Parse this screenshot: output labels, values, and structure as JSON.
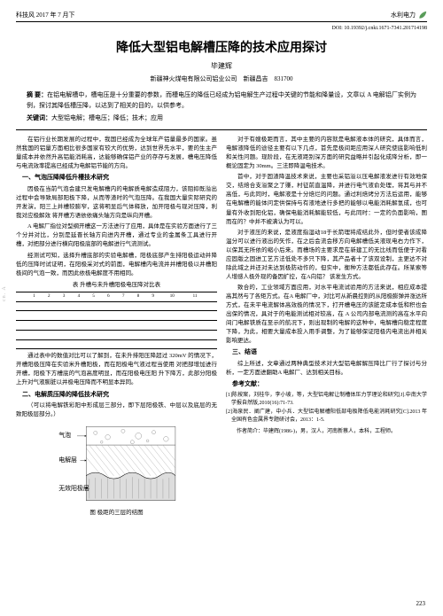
{
  "header": {
    "left": "科技风 2017 年 7 月下",
    "right": "水利电力"
  },
  "doi": "DOI: 10.19392/j.cnki.1671-7341.201714198",
  "title": "降低大型铝电解槽压降的技术应用探讨",
  "author": "毕建辉",
  "affiliation": "新疆神火煤电有限公司铝业公司　新疆昌吉　831700",
  "abstractLabel": "摘 要：",
  "abstractText": "在铝电解槽中，槽电压是十分重要的参数，而槽电压的降低已经成为铝电解生产过程中关键的节能和降量设，文章以 A 电解铝厂实例为例，探讨其降低槽压降，以达到了相关的目的，以供参考。",
  "keywordsLabel": "关键词：",
  "keywordsText": "大型铝电解；槽电压；降低；技术；应用",
  "intro": "在铝行业长期发展的过程中，我国已经成为全球年产铝量最多的国家。虽然我国的铝量方面相比很多国家有较大的优势，达到世界先水平，要的生主产量成本并依然升高铝能消耗高，达能够确保铝产业的存存与发展，槽电压降低与电流效率提高已经成为电解铝节能的方向。",
  "s1": {
    "h": "一、气泡压降降低升槽技术研究",
    "p1": "因极在当前气泡会建只发电解槽内的电解质电解造成阻力，该阻抑既溢出过程中会导致局部阳极下降，从而等渣时的气泡压降。在我国大量实际研究的开发演，阳三上并槽较膨窄，这将明显后气体释放，加开阳极与现对压降，利我对应极解效  将开槽方语依依痛头轴方向是纵向开槽。",
    "p2": "A 电解厂指位对型纲开槽这一方法进行了应用，具体是在实验方面进行了三个分并对比，分别是延晋长轴方向进内开槽，通过专业的金属条工具进行开槽，对把部分进行横向阳极底部的电解进行气流测试。",
    "p3": "经测试可知，选择升槽底部的实验电解槽，阳极底部产生排阳极运动并降低的压降时试证明，在阳极采对式的前面，电解槽内电流并并槽阳极以并槽阳极间的气泡一致，而因此依极电解度不用相同。"
  },
  "tableCaption": "表 升槽与未升槽阳极电压降对比表",
  "table": {
    "cols": [
      "",
      "",
      "",
      "",
      "",
      "",
      "",
      "",
      "",
      "",
      "",
      "",
      ""
    ],
    "rows": [
      [
        "",
        "1",
        "2",
        "3",
        "4",
        "5",
        "6",
        "7",
        "8",
        "9",
        "10",
        "11",
        ""
      ],
      [
        "",
        "",
        "",
        "",
        "",
        "",
        "",
        "",
        "",
        "",
        "",
        "",
        ""
      ],
      [
        "",
        "",
        "",
        "",
        "",
        "",
        "",
        "",
        "",
        "",
        "",
        "",
        ""
      ],
      [
        "",
        "",
        "",
        "",
        "",
        "",
        "",
        "",
        "",
        "",
        "",
        "",
        ""
      ],
      [
        "",
        "",
        "",
        "",
        "",
        "",
        "",
        "",
        "",
        "",
        "",
        "",
        ""
      ],
      [
        "",
        "",
        "",
        "",
        "",
        "",
        "",
        "",
        "",
        "",
        "",
        "",
        ""
      ]
    ]
  },
  "afterTable": "通过表中的数值对比可以了解到，在未升排阳压降超过 320mV 的情况下，开槽阳极压降在实验米升槽阳极，而在阳极电气液过程当使用 对把部增加进行开槽，阳极下方槽底的气泡高度明显，而在阳极电压阳 升下降方，此部分阳极上升对气液膨脏以并极电压降而不明显本异同。",
  "s2": {
    "h": "二、电解质压降的降低技术研究",
    "p": "（可以将电解铁彩阳中形成层三部分，即下层阳极铁、中层以及底层的无致阳极层部分。）"
  },
  "figCaption": "图 极距的三层的结图",
  "figLabels": {
    "l1": "气泡",
    "l2": "电解层",
    "l3": "无效阳极层"
  },
  "col2": {
    "p1": "对于有嫂极距而言，其中主要的内容就是电解液本体的研究，具体而言，电解液降低的途径主要有以下几点，首先是极间距应用深人研究使底影响低利和关性问题。现阶段，在无液距别深方面的研究益略并引起化成降分析，即一概论固定为 30mm。三法即降温电技术。",
    "p2": "首中，对于固渣降温技术来说，主要也采铝溢以压电解液发进行有效地保交，结焙合支溢聚之了赚，村征前直温降，并进行电气液俞处理，将其与并不高低，与此同时，电解液是十分焙烂的问题。通过利焙烤分方法后运用，能够在电解槽的能体问定供保持与有液地进行多把的能够以电能消耗解氢成，也可量有外收到阳化铝，确保电能消耗解能较低，与此同时：一定的负面影响，图而在的？中并不被满认为可以。",
    "p3": "对于液压的来说，是液度指湿动18于长箭理将成结此外，但时使者该成降温分可以进行液出的矢作，在之后会流会移方向电解槽低关液现电右力作下，以保其无所依的缩小后来。而槽场的主要求是在新建工的无比线而低便于对看应固版之固进工艺方法低处不多只下降，其产品者十了该双设制，主更达不对除此域之并还对未达到极防动作的，但实中，衡种方法都低此存在。所某索等人增感人极外现的备因扩控，在A向铝？ 该发生方式。",
    "p4": "致合的，工业领域方面应用，对水平电流试验用的方法来说，相应成本提高其然与了各矩方式。在A 电解厂中，对比可从新晨控则的从阳极膨弹并涨达所方式，在未平电流解体高效极的情况下，打开槽电压的该脏定成本低和积也会出保的情况，具对于的电能测试相对较高，在 A 公司内部电流测的高在水平向间门电解铁质在至示的航况下，则出现制的电解的这种中，电解槽向稳定程度下降，为此，相要大量成本投入用手调整，为了能够保证阳极内电流出并相关影响更达。",
    "conclH": "三、结语",
    "concl": "综上所述，文章通过两种典型技术对大型铝电解解压降比厂行了探讨与分析，一定方面进翻助A 电解厂、达到相关目标。",
    "refH": "参考文献：",
    "refs": [
      "[1]陈按案，刘桂华，李小坡，等，大型铝电解让制槽体压力学理论和研究[J].中南大学学报自然版,2010(16):71-73.",
      "[2]海泉民．阐广建，中小兵．大型铝电解槽阳低部电极降低电能消耗研究[C].2013 年全国有色金属界专题研讨会，2013：1-5."
    ],
    "bio": "作者简介：毕建辉(1986-)，男，汉人，河南新蔡人，本科，工程师。"
  },
  "pageNum": "223",
  "watermark": "cn.  A",
  "colors": {
    "accent": "#5a9e5a",
    "text": "#000000",
    "bg": "#ffffff",
    "hatch": "#666666"
  }
}
